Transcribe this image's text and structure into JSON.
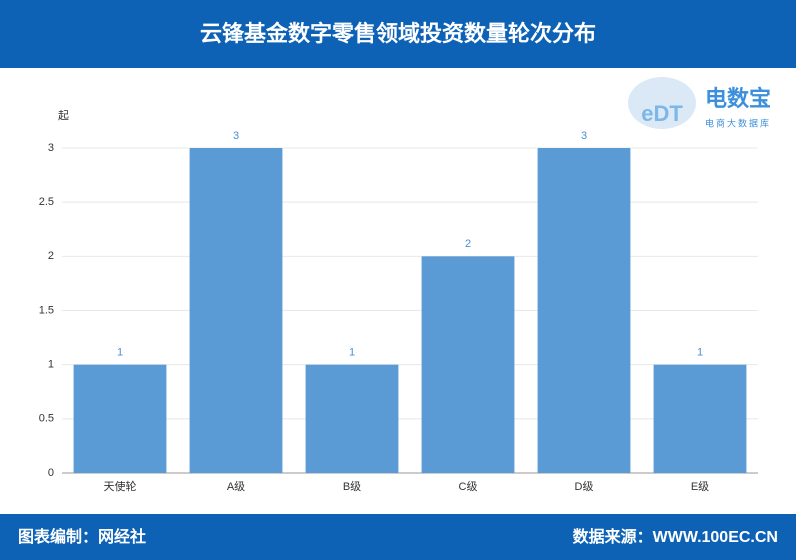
{
  "chart_data": {
    "type": "bar",
    "title": "云锋基金数字零售领域投资数量轮次分布",
    "ylabel": "起",
    "categories": [
      "天使轮",
      "A级",
      "B级",
      "C级",
      "D级",
      "E级"
    ],
    "values": [
      1,
      3,
      1,
      2,
      3,
      1
    ],
    "color": "#5b9bd5",
    "ylim": [
      0,
      3
    ],
    "yticks": [
      0,
      0.5,
      1,
      1.5,
      2,
      2.5,
      3
    ],
    "grid": true,
    "logo_mark": "eDT",
    "logo": "电数宝",
    "logo_subtitle": "电商大数据库",
    "credit": "图表编制：网经社",
    "source": "数据来源：WWW.100EC.CN"
  }
}
